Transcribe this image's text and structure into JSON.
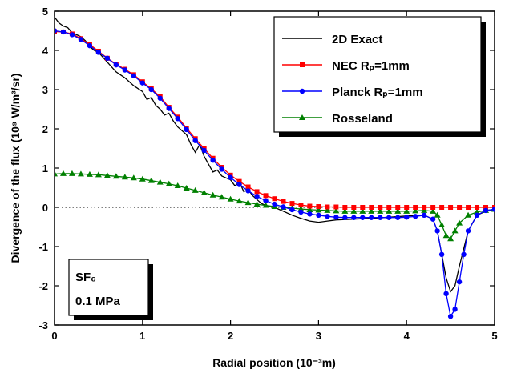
{
  "chart_data": {
    "type": "line",
    "xlabel": "Radial position (10⁻³m)",
    "ylabel": "Divergence of the flux (10⁹ W/m³/sr)",
    "xlim": [
      0,
      5
    ],
    "ylim": [
      -3,
      5
    ],
    "xticks": [
      0,
      1,
      2,
      3,
      4,
      5
    ],
    "yticks": [
      -3,
      -2,
      -1,
      0,
      1,
      2,
      3,
      4,
      5
    ],
    "grid": false,
    "zero_line": "dotted",
    "legend_position": "top-right",
    "annotation": {
      "line1": "SF₆",
      "line2": "0.1 MPa"
    },
    "series": [
      {
        "name": "2D Exact",
        "color": "#000000",
        "marker": "none",
        "x": [
          0.0,
          0.05,
          0.1,
          0.15,
          0.2,
          0.25,
          0.3,
          0.35,
          0.4,
          0.45,
          0.5,
          0.6,
          0.7,
          0.8,
          0.9,
          1.0,
          1.05,
          1.1,
          1.15,
          1.2,
          1.25,
          1.3,
          1.35,
          1.4,
          1.45,
          1.5,
          1.55,
          1.6,
          1.65,
          1.7,
          1.75,
          1.8,
          1.85,
          1.9,
          1.95,
          2.0,
          2.05,
          2.1,
          2.15,
          2.2,
          2.25,
          2.3,
          2.35,
          2.4,
          2.5,
          2.6,
          2.7,
          2.8,
          2.9,
          3.0,
          3.1,
          3.2,
          3.4,
          3.6,
          3.8,
          4.0,
          4.2,
          4.3,
          4.35,
          4.4,
          4.45,
          4.5,
          4.55,
          4.6,
          4.7,
          4.8,
          4.9,
          5.0
        ],
        "y": [
          4.85,
          4.7,
          4.62,
          4.58,
          4.45,
          4.4,
          4.35,
          4.25,
          4.1,
          4.0,
          3.95,
          3.7,
          3.45,
          3.3,
          3.1,
          2.95,
          2.75,
          2.8,
          2.6,
          2.5,
          2.35,
          2.4,
          2.2,
          2.05,
          1.95,
          1.85,
          1.6,
          1.4,
          1.6,
          1.3,
          1.1,
          0.9,
          0.95,
          0.8,
          0.75,
          0.7,
          0.55,
          0.65,
          0.4,
          0.45,
          0.3,
          0.2,
          0.1,
          0.05,
          0.0,
          -0.1,
          -0.2,
          -0.28,
          -0.35,
          -0.38,
          -0.35,
          -0.32,
          -0.3,
          -0.28,
          -0.25,
          -0.22,
          -0.2,
          -0.3,
          -0.6,
          -1.2,
          -1.8,
          -2.15,
          -2.0,
          -1.5,
          -0.6,
          -0.2,
          -0.1,
          -0.05
        ]
      },
      {
        "name": "NEC Rₚ=1mm",
        "color": "#ff0000",
        "marker": "square",
        "x": [
          0.0,
          0.1,
          0.2,
          0.3,
          0.4,
          0.5,
          0.6,
          0.7,
          0.8,
          0.9,
          1.0,
          1.1,
          1.2,
          1.3,
          1.4,
          1.5,
          1.6,
          1.7,
          1.8,
          1.9,
          2.0,
          2.1,
          2.2,
          2.3,
          2.4,
          2.5,
          2.6,
          2.7,
          2.8,
          2.9,
          3.0,
          3.1,
          3.2,
          3.3,
          3.4,
          3.5,
          3.6,
          3.7,
          3.8,
          3.9,
          4.0,
          4.1,
          4.2,
          4.3,
          4.4,
          4.5,
          4.6,
          4.7,
          4.8,
          4.9,
          5.0
        ],
        "y": [
          4.48,
          4.47,
          4.42,
          4.3,
          4.15,
          3.98,
          3.8,
          3.65,
          3.52,
          3.38,
          3.2,
          3.02,
          2.82,
          2.55,
          2.3,
          2.02,
          1.75,
          1.5,
          1.25,
          1.02,
          0.82,
          0.66,
          0.52,
          0.4,
          0.3,
          0.22,
          0.15,
          0.1,
          0.06,
          0.03,
          0.02,
          0.01,
          0.01,
          0.0,
          0.0,
          0.0,
          0.0,
          0.0,
          0.0,
          0.0,
          0.0,
          0.0,
          0.0,
          0.0,
          0.0,
          0.0,
          0.0,
          0.0,
          0.0,
          0.0,
          0.0
        ]
      },
      {
        "name": "Planck Rₚ=1mm",
        "color": "#0000ff",
        "marker": "circle",
        "x": [
          0.0,
          0.1,
          0.2,
          0.3,
          0.4,
          0.5,
          0.6,
          0.7,
          0.8,
          0.9,
          1.0,
          1.1,
          1.2,
          1.3,
          1.4,
          1.5,
          1.6,
          1.7,
          1.8,
          1.9,
          2.0,
          2.1,
          2.2,
          2.3,
          2.4,
          2.5,
          2.6,
          2.7,
          2.8,
          2.9,
          3.0,
          3.1,
          3.2,
          3.3,
          3.4,
          3.5,
          3.6,
          3.7,
          3.8,
          3.9,
          4.0,
          4.1,
          4.2,
          4.3,
          4.35,
          4.4,
          4.45,
          4.5,
          4.55,
          4.6,
          4.65,
          4.7,
          4.8,
          4.9,
          5.0
        ],
        "y": [
          4.5,
          4.47,
          4.4,
          4.28,
          4.12,
          3.95,
          3.8,
          3.63,
          3.5,
          3.35,
          3.17,
          3.0,
          2.78,
          2.52,
          2.26,
          1.98,
          1.7,
          1.45,
          1.2,
          0.97,
          0.76,
          0.58,
          0.42,
          0.28,
          0.17,
          0.08,
          0.01,
          -0.06,
          -0.12,
          -0.17,
          -0.2,
          -0.23,
          -0.25,
          -0.26,
          -0.26,
          -0.26,
          -0.26,
          -0.26,
          -0.26,
          -0.26,
          -0.25,
          -0.23,
          -0.2,
          -0.3,
          -0.6,
          -1.2,
          -2.2,
          -2.78,
          -2.6,
          -1.9,
          -1.2,
          -0.6,
          -0.2,
          -0.08,
          -0.05
        ]
      },
      {
        "name": "Rosseland",
        "color": "#008000",
        "marker": "triangle",
        "x": [
          0.0,
          0.1,
          0.2,
          0.3,
          0.4,
          0.5,
          0.6,
          0.7,
          0.8,
          0.9,
          1.0,
          1.1,
          1.2,
          1.3,
          1.4,
          1.5,
          1.6,
          1.7,
          1.8,
          1.9,
          2.0,
          2.1,
          2.2,
          2.3,
          2.4,
          2.5,
          2.6,
          2.7,
          2.8,
          2.9,
          3.0,
          3.1,
          3.2,
          3.3,
          3.4,
          3.5,
          3.6,
          3.7,
          3.8,
          3.9,
          4.0,
          4.1,
          4.2,
          4.3,
          4.35,
          4.4,
          4.45,
          4.5,
          4.55,
          4.6,
          4.7,
          4.8,
          4.9,
          5.0
        ],
        "y": [
          0.85,
          0.86,
          0.86,
          0.85,
          0.84,
          0.83,
          0.81,
          0.79,
          0.77,
          0.75,
          0.72,
          0.68,
          0.64,
          0.6,
          0.55,
          0.49,
          0.43,
          0.37,
          0.31,
          0.26,
          0.21,
          0.16,
          0.12,
          0.08,
          0.05,
          0.02,
          0.0,
          -0.02,
          -0.04,
          -0.06,
          -0.07,
          -0.08,
          -0.09,
          -0.1,
          -0.1,
          -0.1,
          -0.1,
          -0.1,
          -0.1,
          -0.1,
          -0.1,
          -0.09,
          -0.08,
          -0.1,
          -0.2,
          -0.45,
          -0.72,
          -0.8,
          -0.6,
          -0.4,
          -0.2,
          -0.12,
          -0.08,
          -0.05
        ]
      }
    ]
  }
}
